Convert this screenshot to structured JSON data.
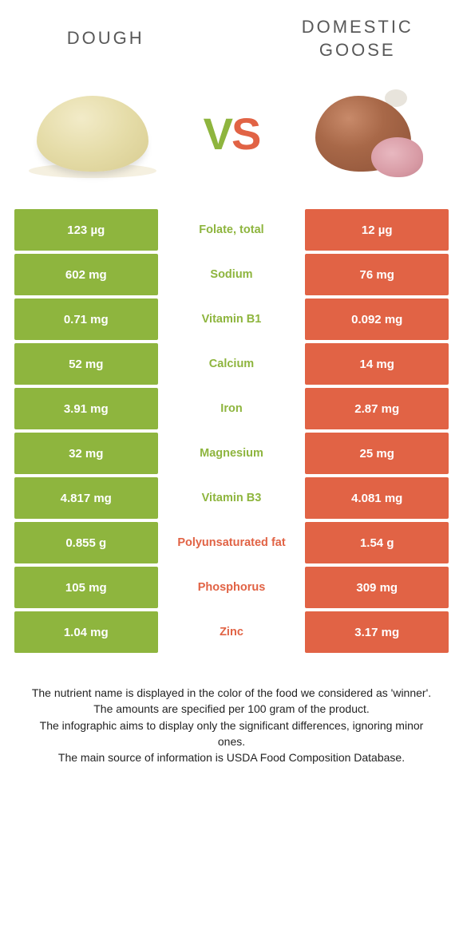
{
  "colors": {
    "green": "#8eb53e",
    "orange": "#e16345",
    "title_color": "#585858",
    "background": "#ffffff",
    "footer_text": "#232323"
  },
  "header": {
    "left_title": "Dough",
    "right_title": "Domestic goose",
    "vs_v": "V",
    "vs_s": "S"
  },
  "table": {
    "rows": [
      {
        "left": "123 µg",
        "mid": "Folate, total",
        "right": "12 µg",
        "winner": "left"
      },
      {
        "left": "602 mg",
        "mid": "Sodium",
        "right": "76 mg",
        "winner": "left"
      },
      {
        "left": "0.71 mg",
        "mid": "Vitamin B1",
        "right": "0.092 mg",
        "winner": "left"
      },
      {
        "left": "52 mg",
        "mid": "Calcium",
        "right": "14 mg",
        "winner": "left"
      },
      {
        "left": "3.91 mg",
        "mid": "Iron",
        "right": "2.87 mg",
        "winner": "left"
      },
      {
        "left": "32 mg",
        "mid": "Magnesium",
        "right": "25 mg",
        "winner": "left"
      },
      {
        "left": "4.817 mg",
        "mid": "Vitamin B3",
        "right": "4.081 mg",
        "winner": "left"
      },
      {
        "left": "0.855 g",
        "mid": "Polyunsaturated fat",
        "right": "1.54 g",
        "winner": "right"
      },
      {
        "left": "105 mg",
        "mid": "Phosphorus",
        "right": "309 mg",
        "winner": "right"
      },
      {
        "left": "1.04 mg",
        "mid": "Zinc",
        "right": "3.17 mg",
        "winner": "right"
      }
    ]
  },
  "footer": {
    "line1": "The nutrient name is displayed in the color of the food we considered as 'winner'.",
    "line2": "The amounts are specified per 100 gram of the product.",
    "line3": "The infographic aims to display only the significant differences, ignoring minor ones.",
    "line4": "The main source of information is USDA Food Composition Database."
  }
}
